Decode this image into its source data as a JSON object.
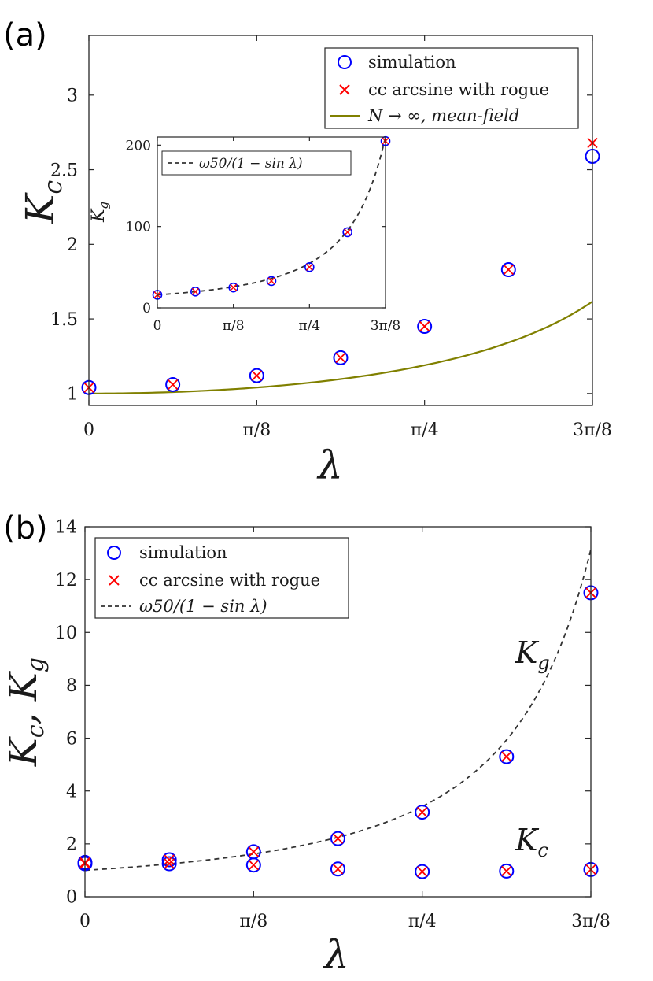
{
  "chart_data": [
    {
      "panel": "(a)",
      "type": "scatter",
      "xlabel": "λ",
      "ylabel": "K",
      "ylabel_sub": "c",
      "xlim": [
        0,
        1.1781
      ],
      "ylim": [
        0.92,
        3.4
      ],
      "xticks": [
        0,
        0.3927,
        0.7854,
        1.1781
      ],
      "xtick_labels": [
        "0",
        "π/8",
        "π/4",
        "3π/8"
      ],
      "yticks": [
        1,
        1.5,
        2,
        2.5,
        3
      ],
      "ytick_labels": [
        "1",
        "1.5",
        "2",
        "2.5",
        "3"
      ],
      "legend_position": "top-right",
      "series": [
        {
          "name": "simulation",
          "marker": "circle",
          "color": "#0000ff",
          "x": [
            0,
            0.1963,
            0.3927,
            0.589,
            0.7854,
            0.9817,
            1.1781
          ],
          "y": [
            1.04,
            1.06,
            1.12,
            1.24,
            1.45,
            1.83,
            2.59
          ]
        },
        {
          "name": "cc arcsine with rogue",
          "marker": "x",
          "color": "#ff0000",
          "x": [
            0,
            0.1963,
            0.3927,
            0.589,
            0.7854,
            0.9817,
            1.1781
          ],
          "y": [
            1.04,
            1.06,
            1.12,
            1.24,
            1.45,
            1.83,
            2.68
          ]
        },
        {
          "name": "N → ∞, mean-field",
          "style": "line",
          "color": "#808000",
          "function": "1/sqrt(cos(x))"
        }
      ],
      "inset": {
        "type": "scatter",
        "ylabel": "K",
        "ylabel_sub": "g",
        "xlim": [
          0,
          1.1781
        ],
        "ylim": [
          0,
          210
        ],
        "xticks": [
          0,
          0.3927,
          0.7854,
          1.1781
        ],
        "xtick_labels": [
          "0",
          "π/8",
          "π/4",
          "3π/8"
        ],
        "yticks": [
          0,
          100,
          200
        ],
        "ytick_labels": [
          "0",
          "100",
          "200"
        ],
        "legend_position": "top-left",
        "series": [
          {
            "name": "simulation",
            "marker": "circle",
            "color": "#0000ff",
            "x": [
              0,
              0.1963,
              0.3927,
              0.589,
              0.7854,
              0.9817,
              1.1781
            ],
            "y": [
              16,
              20,
              25,
              33,
              50,
              93,
              205
            ]
          },
          {
            "name": "cc arcsine with rogue",
            "marker": "x",
            "color": "#ff0000",
            "x": [
              0,
              0.1963,
              0.3927,
              0.589,
              0.7854,
              0.9817,
              1.1781
            ],
            "y": [
              16,
              20,
              25,
              33,
              50,
              93,
              205
            ]
          },
          {
            "name": "ω50/(1 − sin λ)",
            "style": "dashed",
            "color": "#333333",
            "function": "16/(1-sin(x))"
          }
        ]
      }
    },
    {
      "panel": "(b)",
      "type": "scatter",
      "xlabel": "λ",
      "ylabel": "Kc, Kg",
      "xlim": [
        0,
        1.1781
      ],
      "ylim": [
        0,
        14
      ],
      "xticks": [
        0,
        0.3927,
        0.7854,
        1.1781
      ],
      "xtick_labels": [
        "0",
        "π/8",
        "π/4",
        "3π/8"
      ],
      "yticks": [
        0,
        2,
        4,
        6,
        8,
        10,
        12,
        14
      ],
      "ytick_labels": [
        "0",
        "2",
        "4",
        "6",
        "8",
        "10",
        "12",
        "14"
      ],
      "legend_position": "top-left",
      "annotations": [
        {
          "text": "K",
          "sub": "g",
          "x": 1.05,
          "y": 10.6
        },
        {
          "text": "K",
          "sub": "c",
          "x": 1.05,
          "y": 2.1
        }
      ],
      "series": [
        {
          "name": "simulation",
          "marker": "circle",
          "color": "#0000ff",
          "x": [
            0,
            0.1963,
            0.3927,
            0.589,
            0.7854,
            0.9817,
            1.1781,
            0,
            0.1963,
            0.3927,
            0.589,
            0.7854,
            0.9817,
            1.1781
          ],
          "y": [
            1.3,
            1.4,
            1.7,
            2.2,
            3.2,
            5.3,
            11.5,
            1.25,
            1.25,
            1.2,
            1.05,
            0.95,
            0.97,
            1.03
          ]
        },
        {
          "name": "cc arcsine with rogue",
          "marker": "x",
          "color": "#ff0000",
          "x": [
            0,
            0.1963,
            0.3927,
            0.589,
            0.7854,
            0.9817,
            1.1781,
            0,
            0.1963,
            0.3927,
            0.589,
            0.7854,
            0.9817,
            1.1781
          ],
          "y": [
            1.3,
            1.4,
            1.7,
            2.2,
            3.2,
            5.3,
            11.5,
            1.25,
            1.25,
            1.2,
            1.05,
            0.95,
            0.97,
            1.03
          ]
        },
        {
          "name": "ω50/(1 − sin λ)",
          "style": "dashed",
          "color": "#333333",
          "function": "1/(1-sin(x))"
        }
      ]
    }
  ]
}
